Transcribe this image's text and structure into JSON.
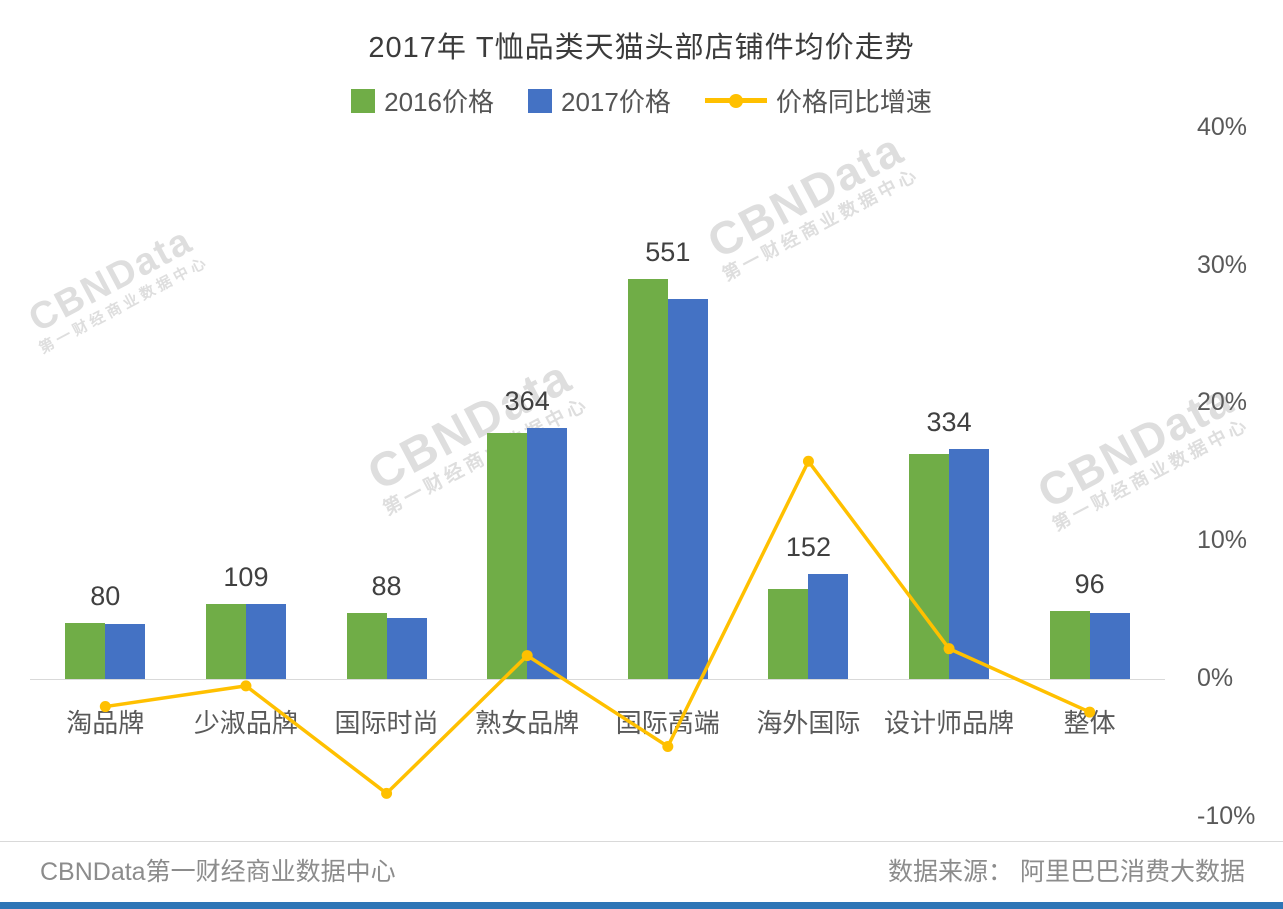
{
  "chart": {
    "title": "2017年 T恤品类天猫头部店铺件均价走势",
    "legend": [
      "2016价格",
      "2017价格",
      "价格同比增速"
    ]
  },
  "chart_data": {
    "type": "bar",
    "title": "2017年 T恤品类天猫头部店铺件均价走势",
    "categories": [
      "淘品牌",
      "少淑品牌",
      "国际时尚",
      "熟女品牌",
      "国际高端",
      "海外国际",
      "设计师品牌",
      "整体"
    ],
    "series": [
      {
        "name": "2016价格",
        "type": "bar",
        "color": "#70AD47",
        "values": [
          82,
          109,
          96,
          357,
          580,
          131,
          327,
          98
        ]
      },
      {
        "name": "2017价格",
        "type": "bar",
        "color": "#4472C4",
        "values": [
          80,
          109,
          88,
          364,
          551,
          152,
          334,
          96
        ]
      },
      {
        "name": "价格同比增速",
        "type": "line",
        "color": "#FFC000",
        "axis": "right",
        "values_pct": [
          -2,
          -0.5,
          -8.3,
          1.7,
          -4.9,
          15.8,
          2.2,
          -2.4
        ]
      }
    ],
    "bar_labels": [
      "80",
      "109",
      "88",
      "364",
      "551",
      "152",
      "334",
      "96"
    ],
    "right_axis": {
      "tick_labels": [
        "40%",
        "30%",
        "20%",
        "10%",
        "0%",
        "-10%"
      ],
      "tick_values": [
        40,
        30,
        20,
        10,
        0,
        -10
      ],
      "min": -10,
      "max": 40
    },
    "left_axis": {
      "visible": false,
      "implied_max": 800
    },
    "grid": false,
    "legend_position": "top"
  },
  "colors": {
    "bar_2016": "#70AD47",
    "bar_2017": "#4472C4",
    "growth_line": "#FFC000",
    "footer_strip": "#2E75B6"
  },
  "watermark": {
    "brand": "CBNData",
    "sub": "第一财经商业数据中心"
  },
  "footer": {
    "left": "CBNData第一财经商业数据中心",
    "right": "数据来源： 阿里巴巴消费大数据"
  }
}
